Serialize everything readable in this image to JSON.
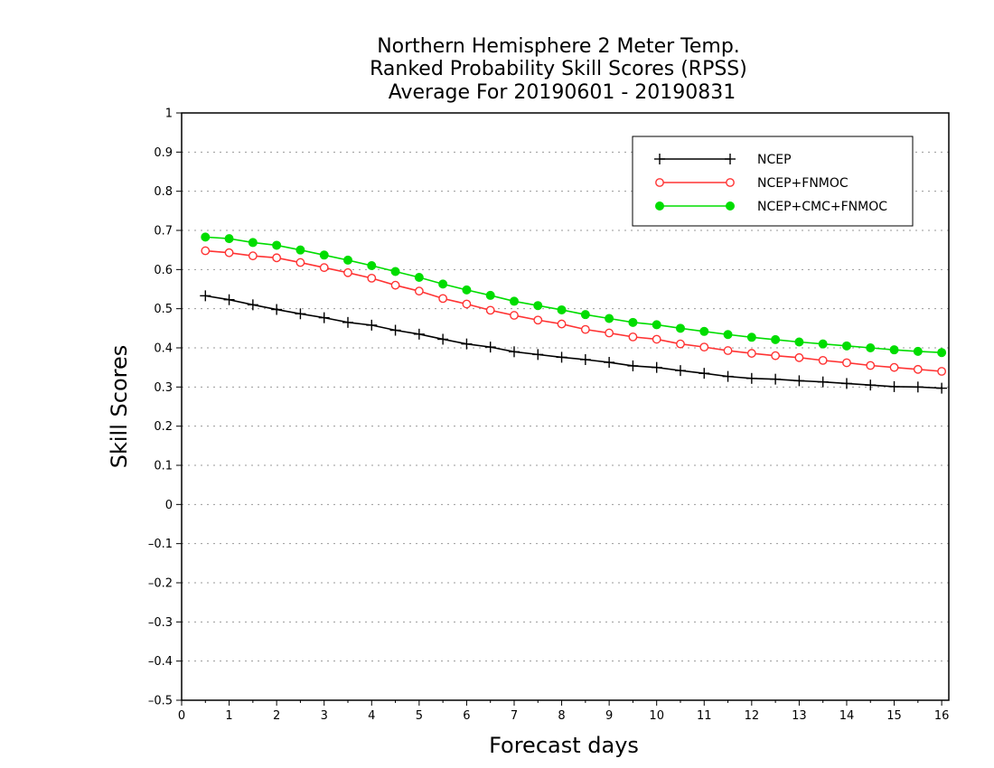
{
  "chart_data": {
    "type": "line",
    "title": [
      "Northern Hemisphere 2 Meter Temp.",
      "Ranked Probability Skill Scores (RPSS)",
      "Average For 20190601 - 20190831"
    ],
    "xlabel": "Forecast days",
    "ylabel": "Skill Scores",
    "xlim": [
      0,
      16.15
    ],
    "ylim": [
      -0.5,
      1
    ],
    "x_ticks": [
      "0",
      "1",
      "2",
      "3",
      "4",
      "5",
      "6",
      "7",
      "8",
      "9",
      "10",
      "11",
      "12",
      "13",
      "14",
      "15",
      "16"
    ],
    "y_ticks": [
      "–0.5",
      "–0.4",
      "–0.3",
      "–0.2",
      "–0.1",
      "0",
      "0.1",
      "0.2",
      "0.3",
      "0.4",
      "0.5",
      "0.6",
      "0.7",
      "0.8",
      "0.9",
      "1"
    ],
    "grid": "horizontal dotted",
    "legend_position": "top-right",
    "x": [
      0.5,
      1,
      1.5,
      2,
      2.5,
      3,
      3.5,
      4,
      4.5,
      5,
      5.5,
      6,
      6.5,
      7,
      7.5,
      8,
      8.5,
      9,
      9.5,
      10,
      10.5,
      11,
      11.5,
      12,
      12.5,
      13,
      13.5,
      14,
      14.5,
      15,
      15.5,
      16
    ],
    "series": [
      {
        "name": "NCEP",
        "color": "#000000",
        "marker": "plus",
        "values": [
          0.533,
          0.523,
          0.51,
          0.498,
          0.487,
          0.477,
          0.465,
          0.458,
          0.445,
          0.435,
          0.422,
          0.41,
          0.402,
          0.39,
          0.383,
          0.376,
          0.37,
          0.363,
          0.354,
          0.35,
          0.342,
          0.335,
          0.327,
          0.322,
          0.32,
          0.316,
          0.313,
          0.309,
          0.305,
          0.301,
          0.3,
          0.297
        ]
      },
      {
        "name": "NCEP+FNMOC",
        "color": "#ff3333",
        "marker": "open-circle",
        "values": [
          0.648,
          0.643,
          0.635,
          0.63,
          0.618,
          0.605,
          0.592,
          0.578,
          0.56,
          0.545,
          0.526,
          0.512,
          0.496,
          0.483,
          0.471,
          0.461,
          0.447,
          0.438,
          0.428,
          0.422,
          0.41,
          0.402,
          0.393,
          0.386,
          0.38,
          0.375,
          0.368,
          0.362,
          0.355,
          0.35,
          0.345,
          0.34
        ]
      },
      {
        "name": "NCEP+CMC+FNMOC",
        "color": "#00dd00",
        "marker": "filled-circle",
        "values": [
          0.683,
          0.679,
          0.669,
          0.662,
          0.65,
          0.637,
          0.624,
          0.61,
          0.595,
          0.58,
          0.563,
          0.548,
          0.534,
          0.519,
          0.508,
          0.497,
          0.485,
          0.475,
          0.465,
          0.459,
          0.45,
          0.442,
          0.434,
          0.427,
          0.421,
          0.415,
          0.41,
          0.405,
          0.4,
          0.395,
          0.391,
          0.388
        ]
      }
    ]
  }
}
